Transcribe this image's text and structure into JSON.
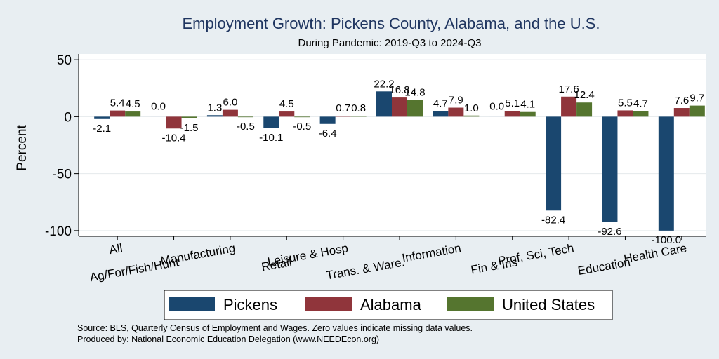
{
  "chart_data": {
    "type": "bar",
    "title": "Employment Growth: Pickens County, Alabama, and the U.S.",
    "subtitle": "During Pandemic: 2019-Q3 to 2024-Q3",
    "ylabel": "Percent",
    "xlabel": "",
    "ylim": [
      -105,
      55
    ],
    "yticks": [
      50,
      0,
      -50,
      -100
    ],
    "grid": true,
    "legend_position": "bottom",
    "categories": [
      "All",
      "Ag/For/Fish/Hunt",
      "Manufacturing",
      "Retail",
      "Leisure & Hosp",
      "Trans. & Ware.",
      "Information",
      "Fin & Ins",
      "Prof, Sci, Tech",
      "Education",
      "Health Care"
    ],
    "series": [
      {
        "name": "Pickens",
        "color": "#1a476f",
        "values": [
          -2.1,
          0.0,
          1.3,
          -10.1,
          -6.4,
          22.2,
          4.7,
          0.0,
          -82.4,
          -92.6,
          -100.0
        ],
        "labels": [
          "-2.1",
          "0.0",
          "1.3",
          "-10.1",
          "-6.4",
          "22.2",
          "4.7",
          "0.0",
          "-82.4",
          "-92.6",
          "-100.0"
        ]
      },
      {
        "name": "Alabama",
        "color": "#90353b",
        "values": [
          5.4,
          -10.4,
          6.0,
          4.5,
          0.7,
          16.8,
          7.9,
          5.1,
          17.6,
          5.5,
          7.6
        ],
        "labels": [
          "5.4",
          "-10.4",
          "6.0",
          "4.5",
          "0.7",
          "16.8",
          "7.9",
          "5.1",
          "17.6",
          "5.5",
          "7.6"
        ]
      },
      {
        "name": "United States",
        "color": "#55752f",
        "values": [
          4.5,
          -1.5,
          -0.5,
          -0.5,
          0.8,
          14.8,
          1.0,
          4.1,
          12.4,
          4.7,
          9.7
        ],
        "labels": [
          "4.5",
          "-1.5",
          "-0.5",
          "-0.5",
          "0.8",
          "14.8",
          "1.0",
          "4.1",
          "12.4",
          "4.7",
          "9.7"
        ]
      }
    ],
    "notes": [
      "Source: BLS, Quarterly Census of Employment and Wages. Zero values indicate missing data values.",
      "Produced by: National Economic Education Delegation (www.NEEDEcon.org)"
    ]
  }
}
